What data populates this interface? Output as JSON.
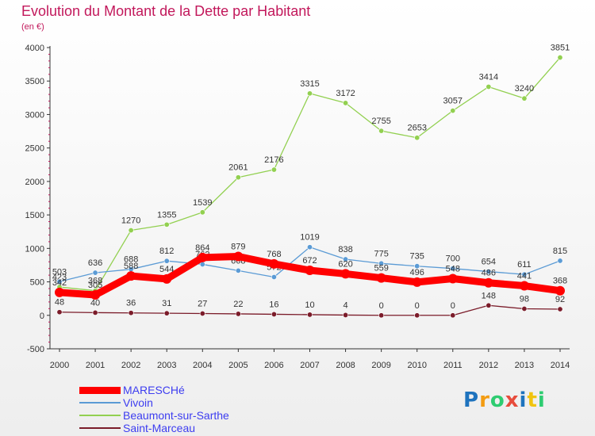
{
  "chart_data": {
    "type": "line",
    "title": "Evolution du Montant de la Dette par Habitant",
    "subtitle": "(en €)",
    "ylim": [
      -500,
      4000
    ],
    "y_ticks": [
      -500,
      0,
      500,
      1000,
      1500,
      2000,
      2500,
      3000,
      3500,
      4000
    ],
    "x": [
      "2000",
      "2001",
      "2002",
      "2003",
      "2004",
      "2005",
      "2006",
      "2007",
      "2008",
      "2009",
      "2010",
      "2011",
      "2012",
      "2013",
      "2014"
    ],
    "grid": false,
    "legend_position": "bottom-left",
    "series": [
      {
        "name": "Vivoin",
        "color": "#5b9bd5",
        "values": [
          503,
          636,
          688,
          812,
          762,
          668,
          572,
          1019,
          838,
          775,
          735,
          700,
          654,
          611,
          815
        ]
      },
      {
        "name": "Beaumont-sur-Sarthe",
        "color": "#92d050",
        "values": [
          423,
          368,
          1270,
          1355,
          1539,
          2061,
          2176,
          3315,
          3172,
          2755,
          2653,
          3057,
          3414,
          3240,
          3851
        ]
      },
      {
        "name": "Saint-Marceau",
        "color": "#7b1c2a",
        "values": [
          48,
          40,
          36,
          31,
          27,
          22,
          16,
          10,
          4,
          0,
          0,
          0,
          148,
          98,
          92
        ]
      },
      {
        "name": "MARESCHé",
        "color": "#ff0000",
        "values": [
          342,
          305,
          588,
          544,
          864,
          879,
          768,
          672,
          620,
          559,
          496,
          548,
          486,
          441,
          368
        ]
      }
    ],
    "legend_order": [
      "MARESCHé",
      "Vivoin",
      "Beaumont-sur-Sarthe",
      "Saint-Marceau"
    ]
  },
  "logo": {
    "letters": [
      "P",
      "r",
      "o",
      "x",
      "i",
      "t",
      "i"
    ],
    "colors": [
      "#1e73be",
      "#f39c12",
      "#2ecc71",
      "#e74c3c",
      "#1e73be",
      "#f1c40f",
      "#2ecc71"
    ]
  }
}
